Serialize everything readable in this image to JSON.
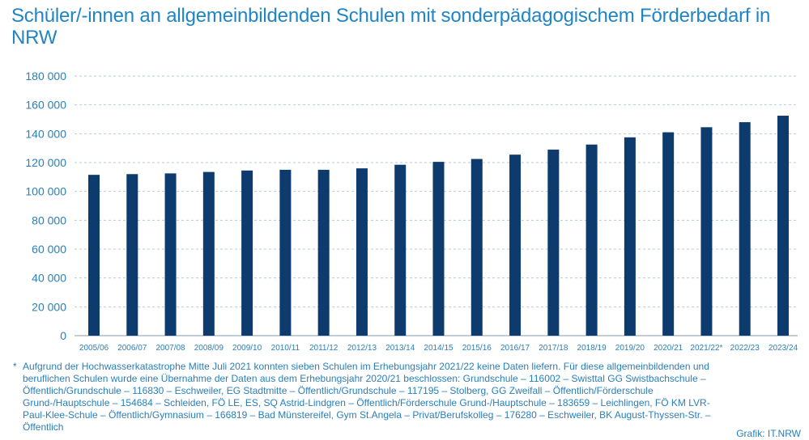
{
  "title": "Schüler/-innen an allgemeinbildenden Schulen mit sonderpädagogischem Förderbedarf in NRW",
  "footnote_marker": "*",
  "footnote": "Aufgrund der Hochwasserkatastrophe Mitte Juli 2021 konnten sieben Schulen im Erhebungsjahr 2021/22 keine Daten liefern. Für diese allgemeinbildenden und beruflichen Schulen wurde eine Übernahme der Daten aus dem Erhebungsjahr 2020/21 beschlossen: Grundschule – 116002 – Swisttal GG Swistbachschule – Öffentlich/Grundschule – 116830 – Eschweiler, EG Stadtmitte – Öffentlich/Grundschule – 117195 – Stolberg, GG Zweifall – Öffentlich/Förderschule Grund-/Hauptschule – 154684 – Schleiden, FÖ LE, ES, SQ Astrid-Lindgren – Öffentlich/Förderschule Grund-/Hauptschule – 183659 – Leichlingen, FÖ KM LVR-Paul-Klee-Schule – Öffentlich/Gymnasium – 166819 – Bad Münstereifel, Gym St.Angela – Privat/Berufskolleg – 176280 – Eschweiler, BK August-Thyssen-Str. – Öffentlich",
  "source": "Grafik: IT.NRW",
  "colors": {
    "title": "#1f85c4",
    "bar": "#0d3b6e",
    "axis_text": "#2a7fb8",
    "grid": "#b9c7d3",
    "footnote": "#2a7fb8"
  },
  "chart_data": {
    "type": "bar",
    "categories": [
      "2005/06",
      "2006/07",
      "2007/08",
      "2008/09",
      "2009/10",
      "2010/11",
      "2011/12",
      "2012/13",
      "2013/14",
      "2014/15",
      "2015/16",
      "2016/17",
      "2017/18",
      "2018/19",
      "2019/20",
      "2020/21",
      "2021/22*",
      "2022/23",
      "2023/24"
    ],
    "values": [
      111500,
      112000,
      112500,
      113500,
      114500,
      115000,
      115000,
      116000,
      118500,
      120500,
      122500,
      125500,
      129000,
      132500,
      137500,
      141000,
      144500,
      148000,
      152500
    ],
    "yticks": [
      "0",
      "20 000",
      "40 000",
      "60 000",
      "80 000",
      "100 000",
      "120 000",
      "140 000",
      "160 000",
      "180 000"
    ],
    "ylim": [
      0,
      180000
    ],
    "ytick_step": 20000,
    "grid": true,
    "legend": "none",
    "title": "",
    "xlabel": "",
    "ylabel": ""
  }
}
